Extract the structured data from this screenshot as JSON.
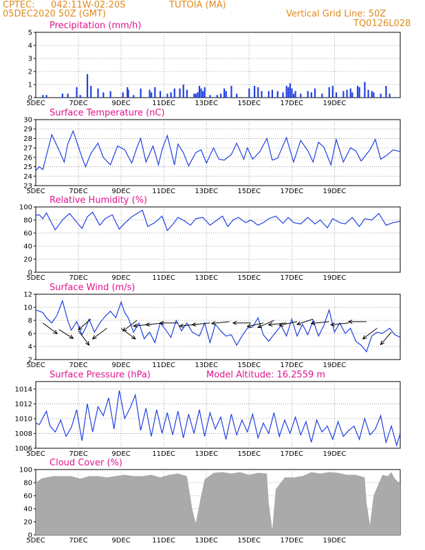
{
  "header": {
    "source": "CPTEC:",
    "coords": "042:11W-02:20S",
    "location": "TUTOIA (MA)",
    "date": "05DEC2020 50Z (GMT)",
    "grid_note": "Vertical Grid Line: 50Z",
    "code": "TQ0126L028",
    "model_altitude": "Model Altitude: 16.2559 m"
  },
  "colors": {
    "header": "#e08a1e",
    "title": "#e0148c",
    "series": "#1f3fe0",
    "cloud": "#aaaaaa",
    "wind": "#000000"
  },
  "x_ticks": [
    "5DEC",
    "7DEC",
    "9DEC",
    "11DEC",
    "13DEC",
    "15DEC",
    "17DEC",
    "19DEC"
  ],
  "chart_data": [
    {
      "type": "bar",
      "title": "Precipitation (mm/h)",
      "ylim": [
        0,
        5
      ],
      "yticks": [
        "0",
        "1",
        "2",
        "3",
        "4",
        "5"
      ],
      "x_unit": "hours since 5DEC",
      "x": [
        8,
        12,
        30,
        36,
        46,
        50,
        58,
        62,
        70,
        76,
        84,
        98,
        103,
        104,
        110,
        118,
        128,
        130,
        134,
        140,
        148,
        152,
        156,
        162,
        166,
        170,
        178,
        180,
        182,
        184,
        186,
        188,
        190,
        196,
        204,
        208,
        212,
        214,
        220,
        226,
        240,
        246,
        250,
        254,
        262,
        266,
        272,
        278,
        282,
        284,
        286,
        288,
        290,
        292,
        298,
        306,
        310,
        314,
        322,
        330,
        334,
        338,
        346,
        350,
        354,
        356,
        362,
        364,
        370,
        374,
        378,
        380,
        388,
        394,
        398
      ],
      "values": [
        0.2,
        0.2,
        0.3,
        0.3,
        0.8,
        0.2,
        1.8,
        0.9,
        0.7,
        0.4,
        0.5,
        0.4,
        0.8,
        0.6,
        0.2,
        0.7,
        0.6,
        0.4,
        0.8,
        0.5,
        0.3,
        0.4,
        0.7,
        0.7,
        1.0,
        0.6,
        0.3,
        0.3,
        0.4,
        0.9,
        0.7,
        0.5,
        0.8,
        0.2,
        0.2,
        0.3,
        0.7,
        0.5,
        0.9,
        0.3,
        0.7,
        0.9,
        0.8,
        0.5,
        0.5,
        0.6,
        0.5,
        0.4,
        0.9,
        0.8,
        1.1,
        0.7,
        0.3,
        0.5,
        0.3,
        0.5,
        0.4,
        0.7,
        0.3,
        0.8,
        0.9,
        0.4,
        0.5,
        0.6,
        0.7,
        0.4,
        0.9,
        0.8,
        1.2,
        0.6,
        0.5,
        0.4,
        0.3,
        0.9,
        0.3
      ]
    },
    {
      "type": "line",
      "title": "Surface Temperature (nC)",
      "ylim": [
        23,
        30
      ],
      "yticks": [
        "23",
        "24",
        "25",
        "26",
        "27",
        "28",
        "29",
        "30"
      ],
      "x_unit": "hours since 5DEC",
      "x": [
        0,
        4,
        8,
        12,
        18,
        26,
        32,
        36,
        42,
        52,
        56,
        62,
        70,
        76,
        84,
        92,
        100,
        108,
        114,
        118,
        124,
        132,
        138,
        142,
        148,
        156,
        160,
        166,
        172,
        180,
        186,
        192,
        200,
        206,
        212,
        220,
        226,
        234,
        238,
        244,
        252,
        260,
        266,
        272,
        282,
        290,
        298,
        306,
        312,
        318,
        324,
        332,
        338,
        346,
        354,
        360,
        366,
        376,
        382,
        388,
        396,
        402,
        410
      ],
      "values": [
        24.6,
        25.0,
        24.7,
        26.2,
        28.4,
        26.8,
        25.5,
        27.4,
        28.8,
        26.0,
        25.0,
        26.4,
        27.5,
        26.0,
        25.2,
        27.2,
        26.8,
        25.4,
        27.1,
        28.0,
        25.5,
        27.2,
        25.2,
        26.8,
        28.3,
        25.2,
        27.4,
        26.5,
        25.1,
        26.5,
        26.8,
        25.4,
        27.0,
        25.8,
        25.7,
        26.3,
        27.5,
        25.8,
        27.0,
        25.8,
        26.6,
        28.0,
        25.7,
        25.9,
        28.1,
        25.5,
        27.8,
        26.7,
        25.5,
        27.6,
        27.1,
        25.2,
        27.9,
        25.5,
        27.0,
        26.7,
        25.6,
        26.8,
        27.9,
        25.8,
        26.3,
        26.8,
        26.6
      ]
    },
    {
      "type": "line",
      "title": "Relative Humidity (%)",
      "ylim": [
        0,
        100
      ],
      "yticks": [
        "0",
        "20",
        "40",
        "60",
        "80",
        "100"
      ],
      "x_unit": "hours since 5DEC",
      "x": [
        0,
        4,
        8,
        12,
        16,
        22,
        30,
        38,
        44,
        52,
        58,
        64,
        72,
        78,
        86,
        94,
        100,
        108,
        114,
        120,
        126,
        134,
        142,
        148,
        154,
        160,
        168,
        174,
        180,
        188,
        196,
        202,
        210,
        216,
        222,
        228,
        236,
        242,
        250,
        256,
        262,
        270,
        278,
        284,
        290,
        298,
        306,
        314,
        320,
        328,
        334,
        342,
        348,
        356,
        364,
        370,
        378,
        386,
        394,
        402,
        410
      ],
      "values": [
        87,
        88,
        82,
        91,
        80,
        65,
        80,
        90,
        80,
        67,
        85,
        92,
        72,
        82,
        88,
        66,
        75,
        85,
        90,
        95,
        70,
        76,
        86,
        64,
        73,
        84,
        78,
        72,
        82,
        84,
        72,
        78,
        86,
        70,
        80,
        84,
        76,
        80,
        72,
        76,
        82,
        86,
        75,
        84,
        76,
        74,
        84,
        74,
        80,
        68,
        82,
        76,
        74,
        84,
        70,
        82,
        80,
        90,
        72,
        76,
        78
      ]
    },
    {
      "type": "line",
      "title": "Surface Wind (m/s)",
      "ylim": [
        2,
        12
      ],
      "yticks": [
        "2",
        "4",
        "6",
        "8",
        "10",
        "12"
      ],
      "x_unit": "hours since 5DEC",
      "x": [
        0,
        4,
        8,
        12,
        18,
        24,
        30,
        36,
        40,
        46,
        52,
        56,
        60,
        66,
        72,
        78,
        84,
        90,
        96,
        100,
        104,
        110,
        116,
        122,
        128,
        134,
        140,
        146,
        152,
        158,
        164,
        170,
        176,
        184,
        190,
        196,
        202,
        208,
        214,
        220,
        226,
        232,
        238,
        244,
        250,
        256,
        262,
        270,
        276,
        282,
        288,
        294,
        300,
        306,
        312,
        318,
        324,
        330,
        336,
        342,
        348,
        354,
        360,
        366,
        372,
        378,
        384,
        390,
        398,
        404,
        410
      ],
      "values": [
        9.6,
        9.4,
        9.2,
        8.4,
        7.6,
        8.8,
        11.0,
        8.0,
        6.5,
        7.8,
        5.8,
        6.8,
        8.2,
        6.2,
        7.6,
        8.6,
        9.4,
        8.4,
        10.8,
        9.2,
        8.4,
        6.2,
        7.6,
        5.2,
        6.2,
        4.6,
        7.6,
        6.6,
        5.4,
        8.0,
        6.4,
        7.6,
        6.2,
        5.6,
        7.6,
        4.6,
        7.4,
        6.4,
        5.6,
        5.8,
        4.2,
        5.6,
        6.8,
        7.0,
        8.4,
        5.8,
        4.8,
        6.2,
        7.2,
        5.6,
        8.2,
        5.6,
        7.4,
        5.8,
        8.0,
        5.6,
        7.2,
        9.6,
        6.2,
        7.6,
        6.0,
        6.8,
        4.8,
        4.2,
        3.2,
        5.6,
        6.2,
        6.0,
        6.8,
        5.8,
        5.4
      ],
      "vectors": {
        "x": [
          8,
          26,
          48,
          62,
          80,
          96,
          114,
          130,
          144,
          160,
          182,
          196,
          218,
          242,
          256,
          268,
          282,
          294,
          312,
          330,
          352,
          372,
          384,
          400
        ],
        "u": [
          -0.8,
          -0.8,
          -0.6,
          0.7,
          0.8,
          -0.8,
          0.8,
          1,
          1,
          1,
          1,
          1,
          1,
          1,
          0.9,
          0.9,
          1,
          1,
          0.9,
          1,
          1,
          1,
          0.8,
          0.6
        ],
        "v": [
          0.6,
          0.5,
          0.8,
          0.6,
          0.6,
          0.6,
          0.6,
          0.1,
          0.1,
          0,
          0.1,
          0.1,
          0.1,
          0,
          0.2,
          0.4,
          0.1,
          0.2,
          0.3,
          0.1,
          0.1,
          0,
          0.6,
          0.7
        ],
        "y": [
          7.6,
          6.6,
          6.4,
          8.2,
          6.8,
          6.8,
          8.0,
          7.4,
          7.6,
          7.6,
          7.4,
          7.6,
          7.8,
          7.6,
          7.6,
          8.0,
          7.6,
          7.8,
          8.2,
          7.8,
          7.6,
          7.8,
          6.8,
          6.2
        ]
      }
    },
    {
      "type": "line",
      "title": "Surface Pressure (hPa)",
      "ylim": [
        1006,
        1015
      ],
      "yticks": [
        "1006",
        "1008",
        "1010",
        "1012",
        "1014"
      ],
      "x_unit": "hours since 5DEC",
      "x": [
        0,
        4,
        8,
        12,
        16,
        22,
        28,
        34,
        40,
        46,
        52,
        58,
        64,
        70,
        76,
        82,
        88,
        94,
        100,
        106,
        112,
        118,
        124,
        130,
        136,
        142,
        148,
        154,
        160,
        166,
        172,
        178,
        184,
        190,
        196,
        202,
        208,
        214,
        220,
        226,
        232,
        238,
        244,
        250,
        256,
        262,
        268,
        274,
        280,
        286,
        292,
        298,
        304,
        310,
        316,
        322,
        328,
        334,
        340,
        346,
        352,
        358,
        364,
        370,
        376,
        382,
        388,
        394,
        400,
        406,
        410
      ],
      "values": [
        1009.4,
        1009.2,
        1010.1,
        1011.0,
        1009.0,
        1008.2,
        1009.8,
        1007.6,
        1008.8,
        1011.2,
        1007.0,
        1012.0,
        1008.2,
        1011.6,
        1010.4,
        1012.8,
        1008.6,
        1013.8,
        1010.0,
        1011.4,
        1013.2,
        1008.4,
        1011.4,
        1007.6,
        1011.2,
        1008.0,
        1010.8,
        1007.8,
        1011.0,
        1007.4,
        1010.6,
        1008.0,
        1011.2,
        1007.6,
        1010.8,
        1008.6,
        1010.2,
        1007.2,
        1010.6,
        1007.8,
        1009.8,
        1008.2,
        1010.6,
        1007.4,
        1009.4,
        1008.0,
        1010.8,
        1007.6,
        1009.8,
        1008.0,
        1010.2,
        1007.8,
        1009.6,
        1006.8,
        1009.8,
        1008.2,
        1009.0,
        1007.2,
        1009.6,
        1007.6,
        1008.4,
        1009.0,
        1007.2,
        1010.0,
        1007.8,
        1008.6,
        1010.4,
        1006.8,
        1009.0,
        1006.4,
        1008.0
      ]
    },
    {
      "type": "area",
      "title": "Cloud Cover (%)",
      "ylim": [
        0,
        100
      ],
      "yticks": [
        "0",
        "20",
        "40",
        "60",
        "80",
        "100"
      ],
      "x_unit": "hours since 5DEC",
      "x": [
        0,
        6,
        12,
        20,
        30,
        40,
        50,
        60,
        70,
        80,
        90,
        100,
        110,
        120,
        130,
        140,
        150,
        160,
        170,
        176,
        180,
        186,
        190,
        200,
        210,
        220,
        230,
        240,
        250,
        260,
        262,
        266,
        270,
        280,
        290,
        300,
        310,
        320,
        330,
        340,
        350,
        360,
        370,
        372,
        376,
        380,
        390,
        396,
        400,
        404,
        410
      ],
      "values": [
        80,
        86,
        88,
        90,
        90,
        90,
        86,
        90,
        90,
        88,
        90,
        92,
        90,
        90,
        92,
        88,
        92,
        94,
        90,
        40,
        18,
        60,
        85,
        95,
        96,
        94,
        96,
        92,
        95,
        94,
        50,
        8,
        70,
        88,
        88,
        90,
        96,
        94,
        96,
        95,
        92,
        92,
        88,
        50,
        15,
        60,
        92,
        90,
        96,
        86,
        78
      ]
    }
  ]
}
